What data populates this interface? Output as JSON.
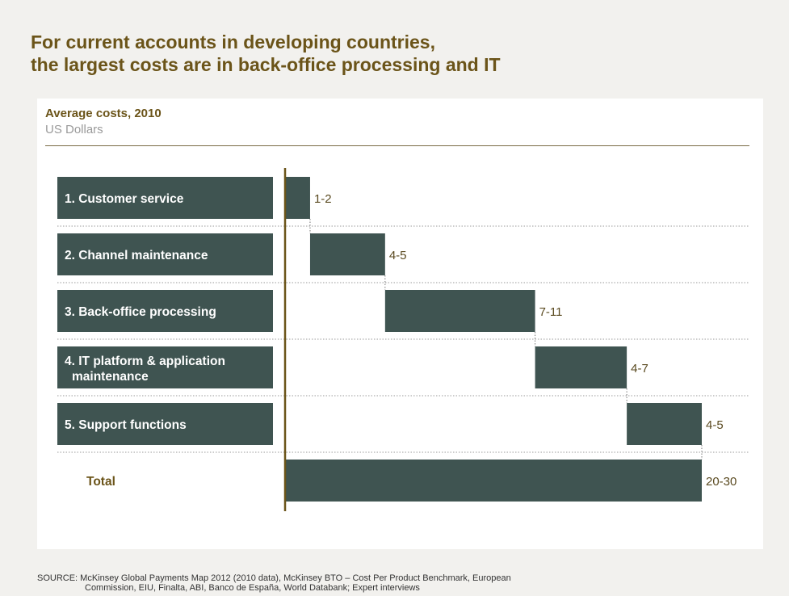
{
  "title": {
    "line1": "For current accounts in developing countries,",
    "line2": "the largest costs are in back-office processing and IT"
  },
  "subtitle": "Average costs, 2010",
  "units": "US Dollars",
  "source": {
    "line1": "SOURCE: McKinsey Global Payments Map 2012 (2010 data), McKinsey BTO – Cost Per Product Benchmark, European",
    "line2": "Commission, EIU, Finalta, ABI, Banco de España, World Databank; Expert interviews"
  },
  "colors": {
    "bar": "#3f5451",
    "title": "#6b5419",
    "axis": "#6b5419"
  },
  "chart_data": {
    "type": "bar",
    "subtype": "waterfall",
    "categories": [
      [
        "1. Customer service"
      ],
      [
        "2. Channel maintenance"
      ],
      [
        "3. Back-office processing"
      ],
      [
        "4. IT platform & application",
        "maintenance"
      ],
      [
        "5. Support functions"
      ]
    ],
    "values": [
      1.5,
      4.5,
      9,
      5.5,
      4.5
    ],
    "value_labels": [
      "1-2",
      "4-5",
      "7-11",
      "4-7",
      "4-5"
    ],
    "total": {
      "label": "Total",
      "value": 25,
      "value_label": "20-30"
    },
    "xlim": [
      0,
      25
    ]
  }
}
